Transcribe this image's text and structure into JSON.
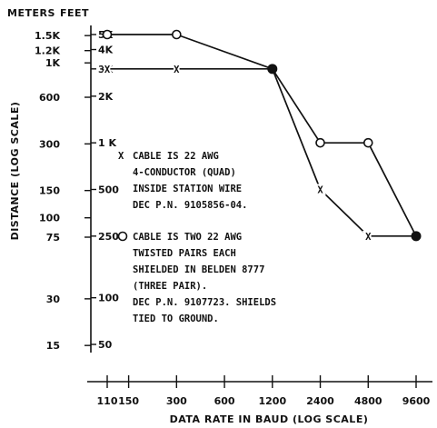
{
  "chart_data": {
    "type": "line",
    "xlabel": "DATA RATE IN BAUD (LOG SCALE)",
    "ylabel": "DISTANCE (LOG SCALE)",
    "yunit_left": "METERS",
    "yunit_right": "FEET",
    "x_scale": "log",
    "y_scale": "log",
    "x_ticks": [
      110,
      150,
      300,
      600,
      1200,
      2400,
      4800,
      9600
    ],
    "x_ticks_labels": [
      "110",
      "150",
      "300",
      "600",
      "1200",
      "2400",
      "4800",
      "9600"
    ],
    "y_ticks_meters": [
      {
        "value": 15,
        "label": "15"
      },
      {
        "value": 30,
        "label": "30"
      },
      {
        "value": 75,
        "label": "75"
      },
      {
        "value": 100,
        "label": "100"
      },
      {
        "value": 150,
        "label": "150"
      },
      {
        "value": 300,
        "label": "300"
      },
      {
        "value": 600,
        "label": "600"
      },
      {
        "value": 1000,
        "label": "1K"
      },
      {
        "value": 1200,
        "label": "1.2K"
      },
      {
        "value": 1500,
        "label": "1.5K"
      }
    ],
    "y_ticks_feet": [
      {
        "value": 50,
        "label": "50"
      },
      {
        "value": 100,
        "label": "100"
      },
      {
        "value": 250,
        "label": "250"
      },
      {
        "value": 500,
        "label": "500"
      },
      {
        "value": 1000,
        "label": "1 K"
      },
      {
        "value": 2000,
        "label": "2K"
      },
      {
        "value": 3000,
        "label": "3K"
      },
      {
        "value": 4000,
        "label": "4K"
      },
      {
        "value": 5000,
        "label": "5K"
      }
    ],
    "series": [
      {
        "marker": "x",
        "x": [
          110,
          300,
          1200,
          2400,
          4800,
          9600
        ],
        "y_feet": [
          3000,
          3000,
          3000,
          500,
          250,
          250
        ],
        "legend_symbol": "X",
        "legend_lines": [
          "CABLE IS 22 AWG",
          "4-CONDUCTOR (QUAD)",
          "INSIDE STATION WIRE",
          "DEC P.N. 9105856-04."
        ]
      },
      {
        "marker": "open-circle",
        "x": [
          110,
          300,
          1200,
          2400,
          4800,
          9600
        ],
        "y_feet": [
          5000,
          5000,
          3000,
          1000,
          1000,
          250
        ],
        "legend_symbol": "O",
        "legend_lines": [
          "CABLE IS TWO 22 AWG",
          "TWISTED PAIRS EACH",
          "SHIELDED IN BELDEN 8777",
          "(THREE PAIR).",
          "DEC P.N. 9107723. SHIELDS",
          "TIED TO GROUND."
        ]
      }
    ],
    "shared_points": [
      {
        "x": 1200,
        "y_feet": 3000,
        "marker": "filled-circle"
      },
      {
        "x": 9600,
        "y_feet": 250,
        "marker": "filled-circle"
      }
    ]
  }
}
